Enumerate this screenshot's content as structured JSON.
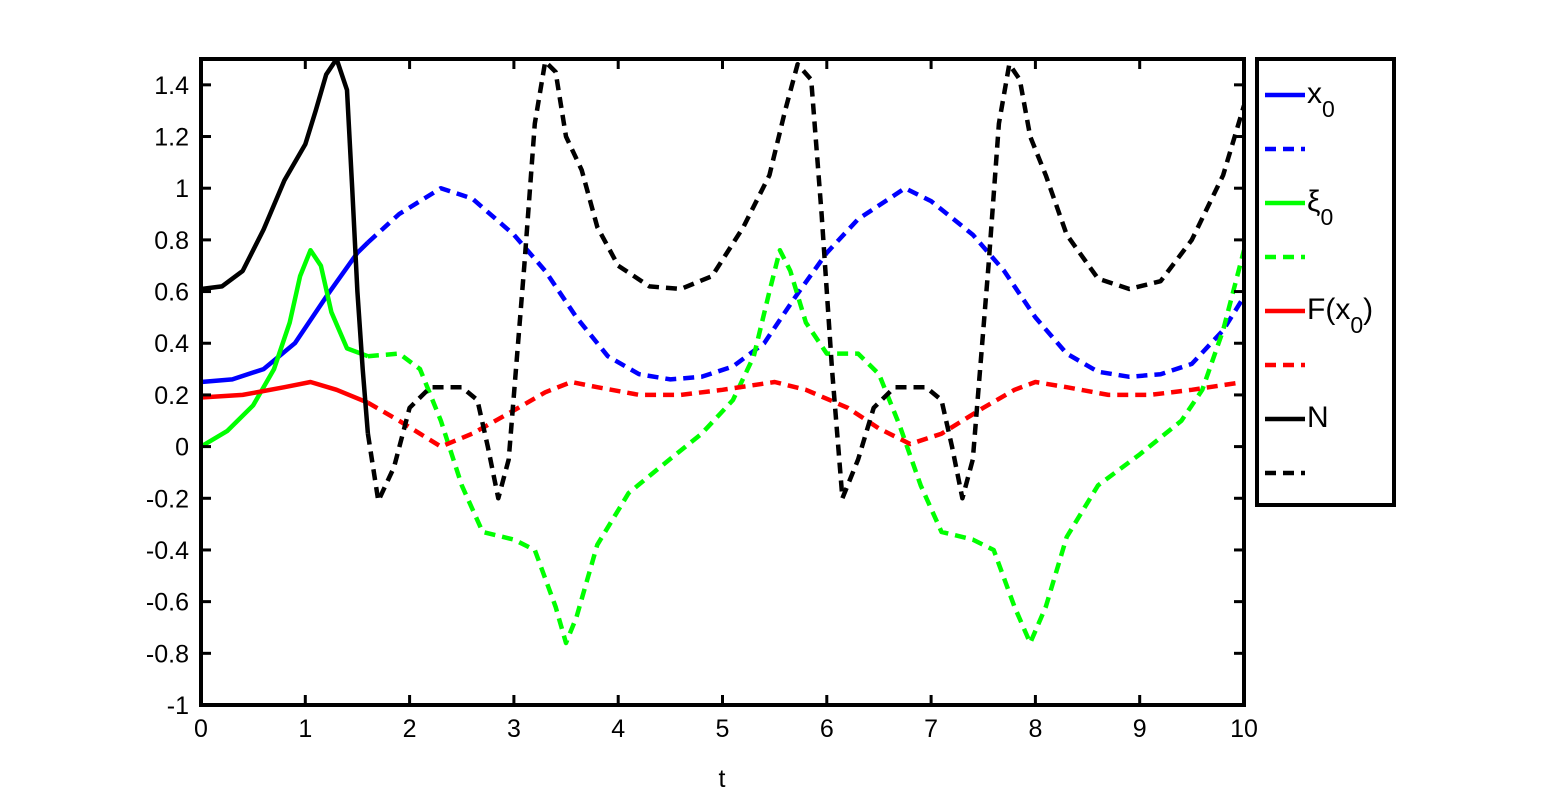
{
  "chart_data": {
    "type": "line",
    "xlabel": "t",
    "ylabel": "",
    "title": "",
    "xlim": [
      0,
      10
    ],
    "ylim": [
      -1,
      1.5
    ],
    "xticks": [
      "0",
      "1",
      "2",
      "3",
      "4",
      "5",
      "6",
      "7",
      "8",
      "9",
      "10"
    ],
    "yticks": [
      "-1",
      "-0.8",
      "-0.6",
      "-0.4",
      "-0.2",
      "0",
      "0.2",
      "0.4",
      "0.6",
      "0.8",
      "1",
      "1.2",
      "1.4"
    ],
    "grid": false,
    "legend_position": "outside-right",
    "legend_entries": [
      {
        "label": "x",
        "subscript": "0",
        "color": "#0000ff",
        "style": "solid"
      },
      {
        "label": "",
        "subscript": "",
        "color": "#0000ff",
        "style": "dashed"
      },
      {
        "label": "ξ",
        "subscript": "0",
        "color": "#00ff00",
        "style": "solid"
      },
      {
        "label": "",
        "subscript": "",
        "color": "#00ff00",
        "style": "dashed"
      },
      {
        "label": "F(x",
        "subscript": "0",
        "suffix": ")",
        "color": "#ff0000",
        "style": "solid"
      },
      {
        "label": "",
        "subscript": "",
        "color": "#ff0000",
        "style": "dashed"
      },
      {
        "label": "N",
        "subscript": "",
        "color": "#000000",
        "style": "solid"
      },
      {
        "label": "",
        "subscript": "",
        "color": "#000000",
        "style": "dashed"
      }
    ],
    "series": [
      {
        "color": "#0000ff",
        "style": "solid",
        "points": [
          [
            0,
            0.25
          ],
          [
            0.3,
            0.26
          ],
          [
            0.6,
            0.3
          ],
          [
            0.9,
            0.4
          ],
          [
            1.2,
            0.58
          ],
          [
            1.5,
            0.75
          ],
          [
            1.6,
            0.79
          ]
        ]
      },
      {
        "color": "#0000ff",
        "style": "dashed",
        "points": [
          [
            1.6,
            0.79
          ],
          [
            1.9,
            0.9
          ],
          [
            2.3,
            1.0
          ],
          [
            2.6,
            0.96
          ],
          [
            3.0,
            0.82
          ],
          [
            3.3,
            0.68
          ],
          [
            3.6,
            0.5
          ],
          [
            3.9,
            0.35
          ],
          [
            4.2,
            0.28
          ],
          [
            4.5,
            0.26
          ],
          [
            4.8,
            0.27
          ],
          [
            5.1,
            0.31
          ],
          [
            5.4,
            0.4
          ],
          [
            5.7,
            0.58
          ],
          [
            6.0,
            0.75
          ],
          [
            6.3,
            0.88
          ],
          [
            6.75,
            1.0
          ],
          [
            7.0,
            0.95
          ],
          [
            7.4,
            0.82
          ],
          [
            7.7,
            0.68
          ],
          [
            8.0,
            0.5
          ],
          [
            8.3,
            0.36
          ],
          [
            8.6,
            0.29
          ],
          [
            8.9,
            0.27
          ],
          [
            9.2,
            0.28
          ],
          [
            9.5,
            0.32
          ],
          [
            9.8,
            0.45
          ],
          [
            10.0,
            0.58
          ]
        ]
      },
      {
        "color": "#00ff00",
        "style": "solid",
        "points": [
          [
            0,
            0.0
          ],
          [
            0.25,
            0.06
          ],
          [
            0.5,
            0.16
          ],
          [
            0.7,
            0.3
          ],
          [
            0.85,
            0.48
          ],
          [
            0.95,
            0.66
          ],
          [
            1.05,
            0.76
          ],
          [
            1.15,
            0.7
          ],
          [
            1.25,
            0.52
          ],
          [
            1.4,
            0.38
          ],
          [
            1.6,
            0.35
          ]
        ]
      },
      {
        "color": "#00ff00",
        "style": "dashed",
        "points": [
          [
            1.6,
            0.35
          ],
          [
            1.9,
            0.36
          ],
          [
            2.1,
            0.3
          ],
          [
            2.3,
            0.1
          ],
          [
            2.5,
            -0.15
          ],
          [
            2.7,
            -0.33
          ],
          [
            3.0,
            -0.36
          ],
          [
            3.2,
            -0.4
          ],
          [
            3.4,
            -0.62
          ],
          [
            3.5,
            -0.76
          ],
          [
            3.6,
            -0.66
          ],
          [
            3.8,
            -0.38
          ],
          [
            4.1,
            -0.18
          ],
          [
            4.4,
            -0.08
          ],
          [
            4.8,
            0.05
          ],
          [
            5.1,
            0.18
          ],
          [
            5.3,
            0.35
          ],
          [
            5.45,
            0.6
          ],
          [
            5.55,
            0.76
          ],
          [
            5.65,
            0.68
          ],
          [
            5.8,
            0.48
          ],
          [
            6.0,
            0.36
          ],
          [
            6.3,
            0.36
          ],
          [
            6.5,
            0.28
          ],
          [
            6.7,
            0.08
          ],
          [
            6.9,
            -0.15
          ],
          [
            7.1,
            -0.33
          ],
          [
            7.4,
            -0.36
          ],
          [
            7.6,
            -0.4
          ],
          [
            7.8,
            -0.62
          ],
          [
            7.95,
            -0.76
          ],
          [
            8.1,
            -0.62
          ],
          [
            8.3,
            -0.35
          ],
          [
            8.6,
            -0.15
          ],
          [
            9.0,
            -0.03
          ],
          [
            9.4,
            0.1
          ],
          [
            9.6,
            0.22
          ],
          [
            9.8,
            0.45
          ],
          [
            10.0,
            0.76
          ]
        ]
      },
      {
        "color": "#ff0000",
        "style": "solid",
        "points": [
          [
            0,
            0.19
          ],
          [
            0.4,
            0.2
          ],
          [
            0.8,
            0.23
          ],
          [
            1.05,
            0.25
          ],
          [
            1.3,
            0.22
          ],
          [
            1.6,
            0.17
          ]
        ]
      },
      {
        "color": "#ff0000",
        "style": "dashed",
        "points": [
          [
            1.6,
            0.17
          ],
          [
            1.9,
            0.1
          ],
          [
            2.1,
            0.05
          ],
          [
            2.3,
            0.0
          ],
          [
            2.6,
            0.05
          ],
          [
            3.0,
            0.14
          ],
          [
            3.3,
            0.21
          ],
          [
            3.55,
            0.25
          ],
          [
            3.8,
            0.23
          ],
          [
            4.2,
            0.2
          ],
          [
            4.6,
            0.2
          ],
          [
            5.0,
            0.22
          ],
          [
            5.5,
            0.25
          ],
          [
            5.8,
            0.22
          ],
          [
            6.2,
            0.15
          ],
          [
            6.5,
            0.07
          ],
          [
            6.8,
            0.01
          ],
          [
            7.1,
            0.05
          ],
          [
            7.5,
            0.15
          ],
          [
            7.8,
            0.22
          ],
          [
            8.0,
            0.25
          ],
          [
            8.3,
            0.23
          ],
          [
            8.7,
            0.2
          ],
          [
            9.1,
            0.2
          ],
          [
            9.5,
            0.22
          ],
          [
            10.0,
            0.25
          ]
        ]
      },
      {
        "color": "#000000",
        "style": "solid",
        "points": [
          [
            0,
            0.61
          ],
          [
            0.2,
            0.62
          ],
          [
            0.4,
            0.68
          ],
          [
            0.6,
            0.84
          ],
          [
            0.8,
            1.03
          ],
          [
            1.0,
            1.17
          ],
          [
            1.1,
            1.3
          ],
          [
            1.2,
            1.44
          ],
          [
            1.3,
            1.5
          ],
          [
            1.4,
            1.38
          ],
          [
            1.45,
            1.0
          ],
          [
            1.5,
            0.6
          ],
          [
            1.55,
            0.3
          ],
          [
            1.6,
            0.05
          ]
        ]
      },
      {
        "color": "#000000",
        "style": "dashed",
        "points": [
          [
            1.6,
            0.05
          ],
          [
            1.7,
            -0.21
          ],
          [
            1.85,
            -0.08
          ],
          [
            2.0,
            0.15
          ],
          [
            2.2,
            0.23
          ],
          [
            2.5,
            0.23
          ],
          [
            2.65,
            0.18
          ],
          [
            2.75,
            0.0
          ],
          [
            2.85,
            -0.2
          ],
          [
            2.95,
            -0.05
          ],
          [
            3.1,
            0.7
          ],
          [
            3.2,
            1.25
          ],
          [
            3.3,
            1.49
          ],
          [
            3.4,
            1.45
          ],
          [
            3.5,
            1.2
          ],
          [
            3.65,
            1.07
          ],
          [
            3.8,
            0.85
          ],
          [
            4.0,
            0.7
          ],
          [
            4.3,
            0.62
          ],
          [
            4.6,
            0.61
          ],
          [
            4.9,
            0.66
          ],
          [
            5.2,
            0.85
          ],
          [
            5.45,
            1.05
          ],
          [
            5.6,
            1.3
          ],
          [
            5.72,
            1.48
          ],
          [
            5.85,
            1.42
          ],
          [
            5.95,
            0.9
          ],
          [
            6.05,
            0.3
          ],
          [
            6.15,
            -0.2
          ],
          [
            6.3,
            -0.05
          ],
          [
            6.45,
            0.15
          ],
          [
            6.65,
            0.23
          ],
          [
            6.95,
            0.23
          ],
          [
            7.1,
            0.18
          ],
          [
            7.2,
            0.0
          ],
          [
            7.3,
            -0.2
          ],
          [
            7.4,
            -0.05
          ],
          [
            7.55,
            0.7
          ],
          [
            7.65,
            1.25
          ],
          [
            7.75,
            1.48
          ],
          [
            7.85,
            1.42
          ],
          [
            7.95,
            1.2
          ],
          [
            8.1,
            1.05
          ],
          [
            8.3,
            0.82
          ],
          [
            8.6,
            0.65
          ],
          [
            8.9,
            0.61
          ],
          [
            9.2,
            0.64
          ],
          [
            9.5,
            0.8
          ],
          [
            9.8,
            1.05
          ],
          [
            10.0,
            1.32
          ]
        ]
      }
    ]
  }
}
